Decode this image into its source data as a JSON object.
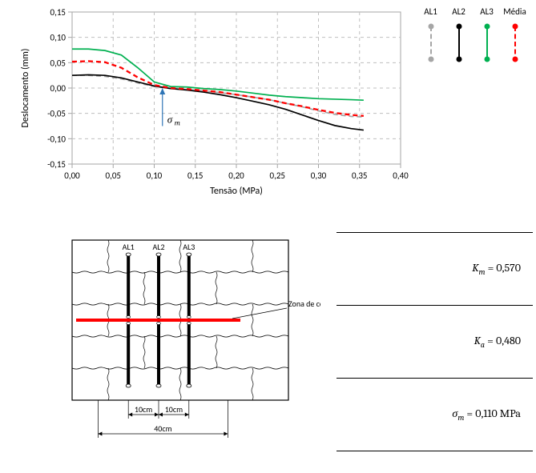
{
  "chart": {
    "type": "line",
    "title": "",
    "xlabel": "Tensão (MPa)",
    "ylabel": "Deslocamento (mm)",
    "label_fontsize": 12,
    "tick_fontsize": 11,
    "background_color": "#ffffff",
    "grid_color": "#bfbfbf",
    "grid_dash": "4,4",
    "axis_color": "#a6a6a6",
    "xlim": [
      0.0,
      0.4
    ],
    "ylim": [
      -0.15,
      0.15
    ],
    "xtick_step": 0.05,
    "ytick_step": 0.05,
    "decimal_separator": ",",
    "xticks": [
      "0,00",
      "0,05",
      "0,10",
      "0,15",
      "0,20",
      "0,25",
      "0,30",
      "0,35",
      "0,40"
    ],
    "yticks": [
      "-0,15",
      "-0,10",
      "-0,05",
      "0,00",
      "0,05",
      "0,10",
      "0,15"
    ],
    "sigma_m_arrow": {
      "x": 0.11,
      "label": "σₘ",
      "color": "#2e75b6"
    },
    "series": [
      {
        "name": "AL1",
        "color": "#a6a6a6",
        "dash": "6,4",
        "width": 1.7,
        "marker": "circle",
        "data": [
          [
            0.0,
            0.025
          ],
          [
            0.02,
            0.025
          ],
          [
            0.04,
            0.023
          ],
          [
            0.06,
            0.018
          ],
          [
            0.08,
            0.01
          ],
          [
            0.1,
            0.003
          ],
          [
            0.12,
            -0.001
          ],
          [
            0.14,
            -0.003
          ],
          [
            0.16,
            -0.005
          ],
          [
            0.18,
            -0.009
          ],
          [
            0.2,
            -0.013
          ],
          [
            0.22,
            -0.018
          ],
          [
            0.24,
            -0.023
          ],
          [
            0.26,
            -0.03
          ],
          [
            0.28,
            -0.037
          ],
          [
            0.3,
            -0.045
          ],
          [
            0.32,
            -0.052
          ],
          [
            0.34,
            -0.056
          ],
          [
            0.355,
            -0.057
          ]
        ]
      },
      {
        "name": "AL2",
        "color": "#000000",
        "dash": "none",
        "width": 1.7,
        "marker": "circle",
        "data": [
          [
            0.0,
            0.025
          ],
          [
            0.02,
            0.026
          ],
          [
            0.04,
            0.025
          ],
          [
            0.06,
            0.02
          ],
          [
            0.08,
            0.012
          ],
          [
            0.1,
            0.004
          ],
          [
            0.12,
            -0.001
          ],
          [
            0.14,
            -0.004
          ],
          [
            0.16,
            -0.008
          ],
          [
            0.18,
            -0.013
          ],
          [
            0.2,
            -0.019
          ],
          [
            0.22,
            -0.026
          ],
          [
            0.24,
            -0.033
          ],
          [
            0.26,
            -0.042
          ],
          [
            0.28,
            -0.053
          ],
          [
            0.3,
            -0.064
          ],
          [
            0.32,
            -0.074
          ],
          [
            0.34,
            -0.08
          ],
          [
            0.355,
            -0.083
          ]
        ]
      },
      {
        "name": "AL3",
        "color": "#00b050",
        "dash": "none",
        "width": 1.7,
        "marker": "circle",
        "data": [
          [
            0.0,
            0.077
          ],
          [
            0.02,
            0.077
          ],
          [
            0.04,
            0.074
          ],
          [
            0.06,
            0.065
          ],
          [
            0.08,
            0.04
          ],
          [
            0.1,
            0.012
          ],
          [
            0.12,
            0.003
          ],
          [
            0.14,
            0.002
          ],
          [
            0.16,
            -0.001
          ],
          [
            0.18,
            -0.003
          ],
          [
            0.2,
            -0.006
          ],
          [
            0.22,
            -0.01
          ],
          [
            0.24,
            -0.014
          ],
          [
            0.26,
            -0.017
          ],
          [
            0.28,
            -0.019
          ],
          [
            0.3,
            -0.021
          ],
          [
            0.32,
            -0.022
          ],
          [
            0.34,
            -0.023
          ],
          [
            0.355,
            -0.024
          ]
        ]
      },
      {
        "name": "Média",
        "color": "#ff0000",
        "dash": "6,4",
        "width": 2.3,
        "marker": "circle",
        "data": [
          [
            0.0,
            0.052
          ],
          [
            0.02,
            0.053
          ],
          [
            0.04,
            0.051
          ],
          [
            0.06,
            0.04
          ],
          [
            0.08,
            0.021
          ],
          [
            0.1,
            0.006
          ],
          [
            0.12,
            0.0
          ],
          [
            0.14,
            -0.002
          ],
          [
            0.16,
            -0.005
          ],
          [
            0.18,
            -0.008
          ],
          [
            0.2,
            -0.013
          ],
          [
            0.22,
            -0.018
          ],
          [
            0.24,
            -0.023
          ],
          [
            0.26,
            -0.03
          ],
          [
            0.28,
            -0.036
          ],
          [
            0.3,
            -0.043
          ],
          [
            0.32,
            -0.049
          ],
          [
            0.34,
            -0.053
          ],
          [
            0.355,
            -0.055
          ]
        ]
      }
    ]
  },
  "legend": {
    "labels": [
      "AL1",
      "AL2",
      "AL3",
      "Média"
    ],
    "items": [
      {
        "color": "#a6a6a6",
        "dash": "4,4"
      },
      {
        "color": "#000000",
        "dash": "none"
      },
      {
        "color": "#00b050",
        "dash": "none"
      },
      {
        "color": "#ff0000",
        "dash": "4,4"
      }
    ]
  },
  "schematic": {
    "type": "diagram",
    "border_color": "#000000",
    "sensors": [
      "AL1",
      "AL2",
      "AL3"
    ],
    "shear_zone_label": "Zona de corte",
    "shear_zone_color": "#ff0000",
    "dimensions": {
      "spacing": "10cm",
      "total": "40cm"
    },
    "label_fontsize": 10
  },
  "results": [
    {
      "symbol": "K",
      "subscript": "m",
      "value": "0,570",
      "unit": ""
    },
    {
      "symbol": "K",
      "subscript": "a",
      "value": "0,480",
      "unit": ""
    },
    {
      "symbol": "σ",
      "subscript": "m",
      "value": "0,110",
      "unit": " MPa"
    }
  ]
}
